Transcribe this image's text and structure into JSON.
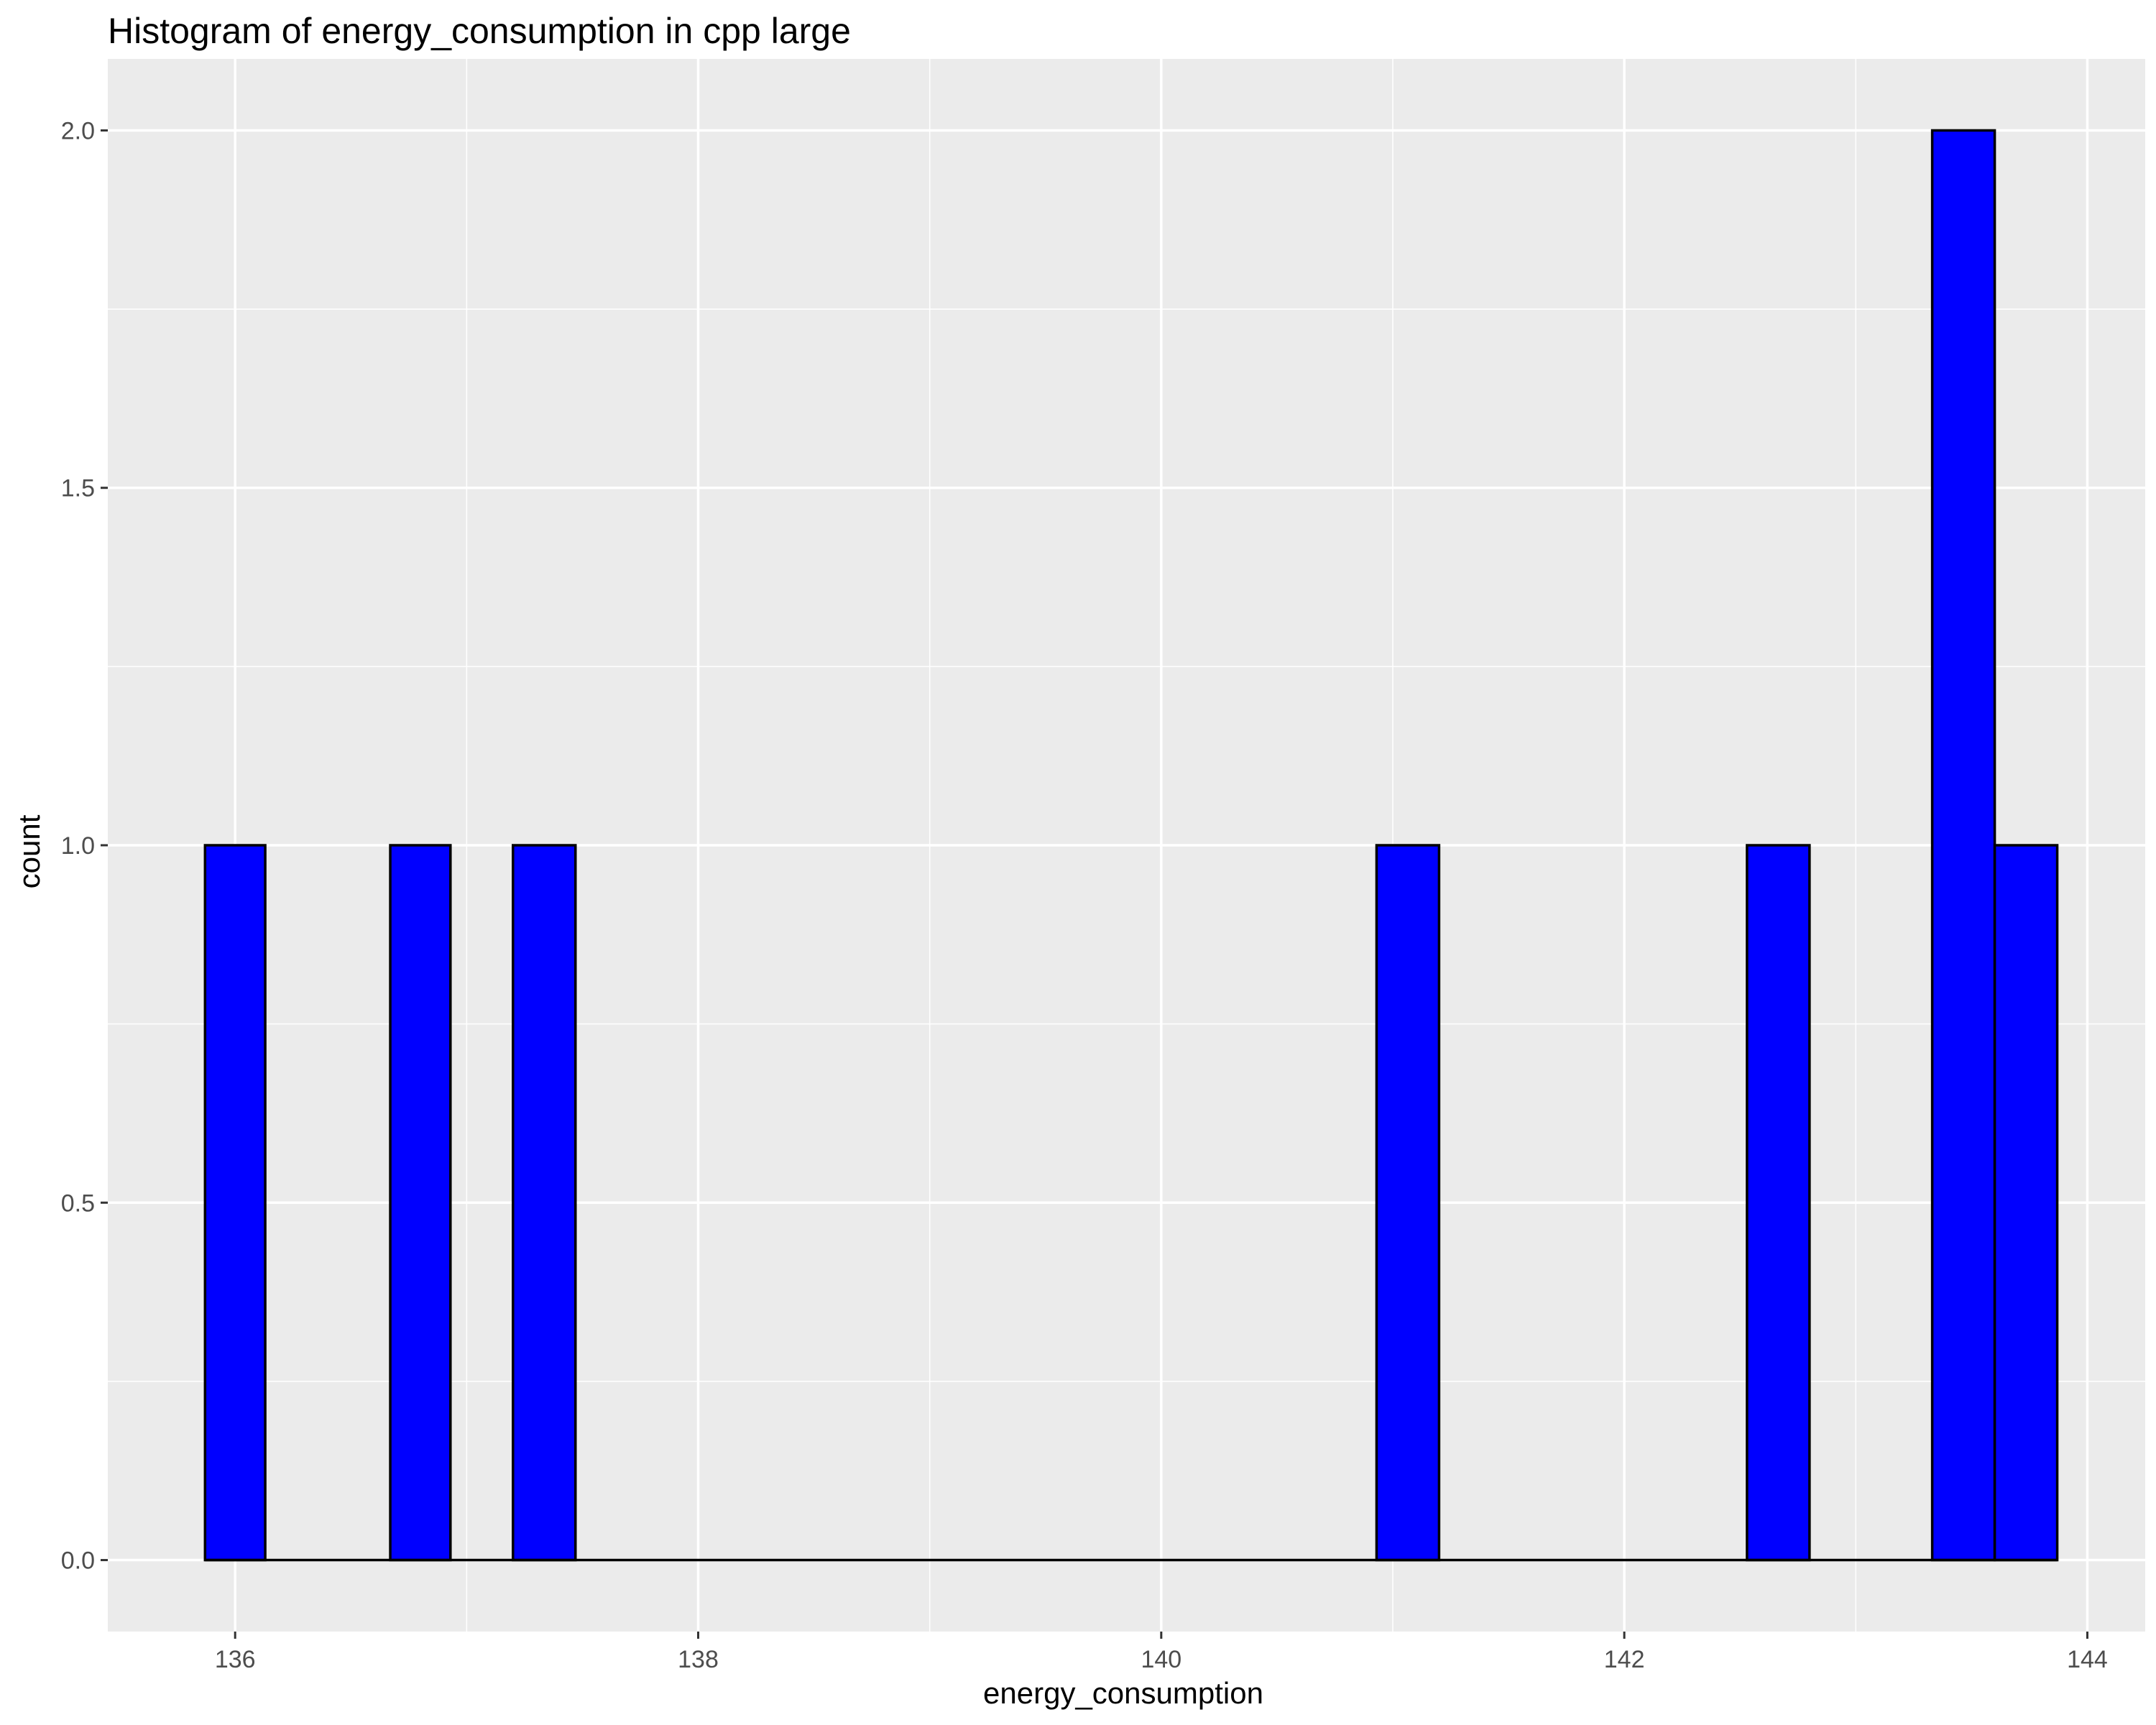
{
  "chart_data": {
    "type": "bar",
    "title": "Histogram of energy_consumption in cpp large",
    "xlabel": "energy_consumption",
    "ylabel": "count",
    "xlim": [
      135.45,
      144.25
    ],
    "ylim": [
      -0.1,
      2.1
    ],
    "x_ticks": [
      136,
      138,
      140,
      142,
      144
    ],
    "x_tick_labels": [
      "136",
      "138",
      "140",
      "142",
      "144"
    ],
    "y_ticks": [
      0.0,
      0.5,
      1.0,
      1.5,
      2.0
    ],
    "y_tick_labels": [
      "0.0",
      "0.5",
      "1.0",
      "1.5",
      "2.0"
    ],
    "bin_width": 0.2667,
    "bins": [
      {
        "x_start": 135.87,
        "x_end": 136.13,
        "count": 1
      },
      {
        "x_start": 136.67,
        "x_end": 136.93,
        "count": 1
      },
      {
        "x_start": 137.2,
        "x_end": 137.47,
        "count": 1
      },
      {
        "x_start": 140.93,
        "x_end": 141.2,
        "count": 1
      },
      {
        "x_start": 142.53,
        "x_end": 142.8,
        "count": 1
      },
      {
        "x_start": 143.33,
        "x_end": 143.6,
        "count": 2
      },
      {
        "x_start": 143.6,
        "x_end": 143.87,
        "count": 1
      }
    ],
    "baseline_x_range": [
      135.87,
      143.87
    ],
    "grid": true,
    "legend": "none",
    "colors": {
      "panel_background": "#ebebeb",
      "grid_major": "#ffffff",
      "bar_fill": "#0000ff",
      "bar_outline": "#000000",
      "tick_label": "#4d4d4d",
      "text": "#000000"
    }
  }
}
